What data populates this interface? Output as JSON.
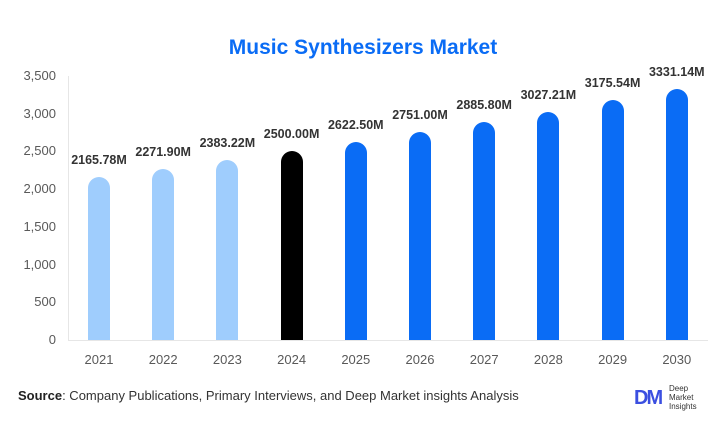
{
  "title": "Music Synthesizers Market",
  "source": {
    "label": "Source",
    "text": ": Company Publications, Primary Interviews, and Deep Market insights Analysis"
  },
  "logo": {
    "mark": "DM",
    "lines": [
      "Deep",
      "Market",
      "Insights"
    ]
  },
  "colors": {
    "historical": "#9fcdfd",
    "current": "#000000",
    "forecast": "#0a6cf5",
    "title": "#0a6cf5"
  },
  "chart_data": {
    "type": "bar",
    "title": "Music Synthesizers Market",
    "xlabel": "",
    "ylabel": "",
    "ylim": [
      0,
      3500
    ],
    "yticks": [
      0,
      500,
      1000,
      1500,
      2000,
      2500,
      3000,
      3500
    ],
    "ytick_labels": [
      "0",
      "500",
      "1,000",
      "1,500",
      "2,000",
      "2,500",
      "3,000",
      "3,500"
    ],
    "categories": [
      "2021",
      "2022",
      "2023",
      "2024",
      "2025",
      "2026",
      "2027",
      "2028",
      "2029",
      "2030"
    ],
    "values": [
      2165.78,
      2271.9,
      2383.22,
      2500.0,
      2622.5,
      2751.0,
      2885.8,
      3027.21,
      3175.54,
      3331.14
    ],
    "data_labels": [
      "2165.78M",
      "2271.90M",
      "2383.22M",
      "2500.00M",
      "2622.50M",
      "2751.00M",
      "2885.80M",
      "3027.21M",
      "3175.54M",
      "3331.14M"
    ],
    "bar_colors": [
      "#9fcdfd",
      "#9fcdfd",
      "#9fcdfd",
      "#000000",
      "#0a6cf5",
      "#0a6cf5",
      "#0a6cf5",
      "#0a6cf5",
      "#0a6cf5",
      "#0a6cf5"
    ],
    "grid": false,
    "legend": null
  }
}
